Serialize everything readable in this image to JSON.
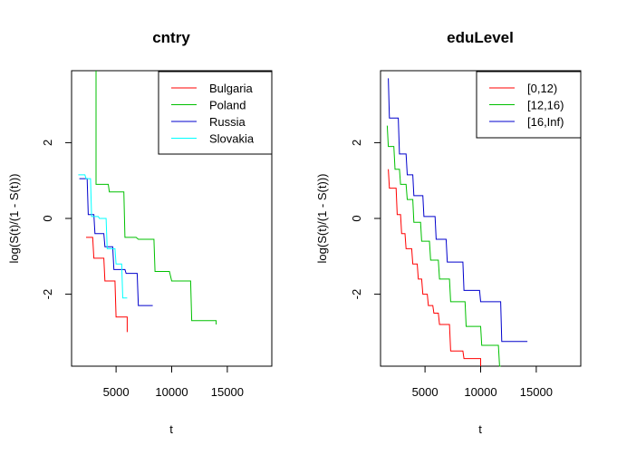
{
  "chart_data": [
    {
      "type": "line",
      "step": true,
      "title": "cntry",
      "xlabel": "t",
      "ylabel": "log(S(t)/(1 - S(t)))",
      "xlim": [
        1000,
        19000
      ],
      "ylim": [
        -3.9,
        3.9
      ],
      "x_ticks": [
        5000,
        10000,
        15000
      ],
      "y_ticks": [
        -2,
        0,
        2
      ],
      "grid": false,
      "legend_position": "top-right",
      "series": [
        {
          "name": "Bulgaria",
          "color": "#ff0000",
          "x": [
            2300,
            2900,
            3000,
            3900,
            4000,
            4900,
            5000,
            5900,
            6000,
            6000
          ],
          "y": [
            -0.5,
            -0.5,
            -1.05,
            -1.05,
            -1.65,
            -1.65,
            -2.6,
            -2.6,
            -2.6,
            -3.0
          ]
        },
        {
          "name": "Poland",
          "color": "#00c000",
          "x": [
            3200,
            3200,
            3300,
            4300,
            4400,
            5700,
            5800,
            6800,
            7000,
            8400,
            8500,
            9800,
            10000,
            11700,
            11800,
            14000,
            14000
          ],
          "y": [
            3.9,
            0.9,
            0.9,
            0.9,
            0.7,
            0.7,
            -0.5,
            -0.5,
            -0.55,
            -0.55,
            -1.4,
            -1.4,
            -1.65,
            -1.65,
            -2.7,
            -2.7,
            -2.8
          ]
        },
        {
          "name": "Russia",
          "color": "#0000cc",
          "x": [
            1700,
            2400,
            2500,
            3000,
            3100,
            3900,
            4000,
            4700,
            4800,
            5800,
            5900,
            6900,
            7000,
            8300
          ],
          "y": [
            1.05,
            1.05,
            0.1,
            0.1,
            -0.4,
            -0.4,
            -0.75,
            -0.75,
            -1.35,
            -1.35,
            -1.45,
            -1.45,
            -2.3,
            -2.3
          ]
        },
        {
          "name": "Slovakia",
          "color": "#00ffff",
          "x": [
            1600,
            2200,
            2300,
            2700,
            2800,
            3400,
            3500,
            4100,
            4200,
            4900,
            5000,
            5500,
            5600,
            6000
          ],
          "y": [
            1.15,
            1.15,
            1.05,
            1.05,
            0.05,
            0.05,
            0.0,
            0.0,
            -0.8,
            -0.8,
            -1.2,
            -1.2,
            -2.1,
            -2.1
          ]
        }
      ]
    },
    {
      "type": "line",
      "step": true,
      "title": "eduLevel",
      "xlabel": "t",
      "ylabel": "log(S(t)/(1 - S(t)))",
      "xlim": [
        1000,
        19000
      ],
      "ylim": [
        -3.9,
        3.9
      ],
      "x_ticks": [
        5000,
        10000,
        15000
      ],
      "y_ticks": [
        -2,
        0,
        2
      ],
      "grid": false,
      "legend_position": "top-right",
      "series": [
        {
          "name": "[0,12)",
          "color": "#ff0000",
          "x": [
            1700,
            1800,
            2400,
            2500,
            2800,
            2900,
            3200,
            3300,
            3800,
            3900,
            4300,
            4400,
            4700,
            4800,
            5200,
            5300,
            5700,
            5800,
            6200,
            6300,
            7200,
            7300,
            8400,
            8500,
            10000,
            10000
          ],
          "y": [
            1.3,
            0.8,
            0.8,
            0.1,
            0.1,
            -0.4,
            -0.4,
            -0.8,
            -0.8,
            -1.2,
            -1.2,
            -1.6,
            -1.6,
            -2.0,
            -2.0,
            -2.3,
            -2.3,
            -2.5,
            -2.5,
            -2.8,
            -2.8,
            -3.5,
            -3.5,
            -3.7,
            -3.7,
            -3.9
          ]
        },
        {
          "name": "[12,16)",
          "color": "#00c000",
          "x": [
            1600,
            1700,
            2200,
            2300,
            2700,
            2800,
            3300,
            3400,
            3900,
            4000,
            4600,
            4700,
            5400,
            5500,
            6200,
            6300,
            7200,
            7300,
            8600,
            8700,
            10000,
            10100,
            11600,
            11700,
            11800
          ],
          "y": [
            2.45,
            1.9,
            1.9,
            1.3,
            1.3,
            0.9,
            0.9,
            0.5,
            0.5,
            -0.1,
            -0.1,
            -0.6,
            -0.6,
            -1.1,
            -1.1,
            -1.6,
            -1.6,
            -2.2,
            -2.2,
            -2.85,
            -2.85,
            -3.35,
            -3.35,
            -3.9,
            -3.9
          ]
        },
        {
          "name": "[16,Inf)",
          "color": "#0000cc",
          "x": [
            1700,
            1800,
            2600,
            2700,
            3300,
            3400,
            3900,
            4000,
            4800,
            4900,
            5900,
            6000,
            6900,
            7000,
            8400,
            8500,
            9900,
            10000,
            11800,
            11900,
            14200
          ],
          "y": [
            3.7,
            2.65,
            2.65,
            1.7,
            1.7,
            1.15,
            1.15,
            0.6,
            0.6,
            0.05,
            0.05,
            -0.55,
            -0.55,
            -1.15,
            -1.15,
            -1.9,
            -1.9,
            -2.2,
            -2.2,
            -3.25,
            -3.25
          ]
        }
      ]
    }
  ]
}
